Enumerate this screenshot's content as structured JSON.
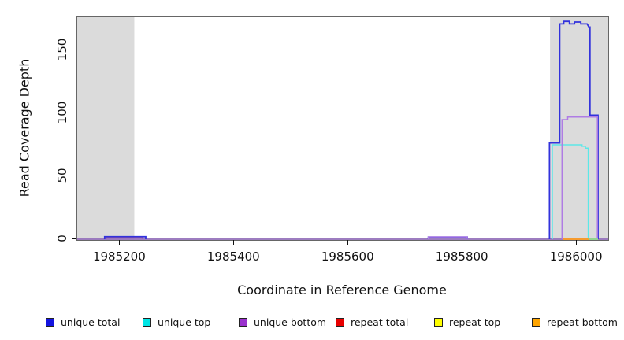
{
  "chart_data": {
    "type": "line",
    "xlabel": "Coordinate in Reference Genome",
    "ylabel": "Read Coverage Depth",
    "xlim": [
      1985125,
      1986055
    ],
    "ylim": [
      0,
      177
    ],
    "xticks": [
      1985200,
      1985400,
      1985600,
      1985800,
      1986000
    ],
    "yticks": [
      0,
      50,
      100,
      150
    ],
    "grid": false,
    "shaded_regions": [
      {
        "from": 1985125,
        "to": 1985225,
        "color": "#DBDBDB"
      },
      {
        "from": 1985953,
        "to": 1986055,
        "color": "#DBDBDB"
      }
    ],
    "baseline": {
      "color": "#7E64E6",
      "points": [
        [
          1985125,
          0
        ],
        [
          1986055,
          0
        ]
      ]
    },
    "series": [
      {
        "name": "unique total",
        "line_color": "#3232DC",
        "segments": [
          [
            [
              1985173,
              0
            ],
            [
              1985173,
              2
            ],
            [
              1985245,
              2
            ],
            [
              1985245,
              0
            ]
          ],
          [
            [
              1985740,
              0
            ],
            [
              1985740,
              1.7
            ],
            [
              1985808,
              1.7
            ],
            [
              1985808,
              0
            ]
          ],
          [
            [
              1985952,
              0
            ],
            [
              1985952,
              76.5
            ],
            [
              1985970,
              76.5
            ],
            [
              1985970,
              171
            ],
            [
              1985977,
              171
            ],
            [
              1985977,
              173
            ],
            [
              1985987,
              173
            ],
            [
              1985987,
              171
            ],
            [
              1985996,
              171
            ],
            [
              1985996,
              172.5
            ],
            [
              1986007,
              172.5
            ],
            [
              1986007,
              171
            ],
            [
              1986018,
              171
            ],
            [
              1986021,
              168.5
            ],
            [
              1986023,
              168.5
            ],
            [
              1986023,
              98.5
            ],
            [
              1986037,
              98.5
            ],
            [
              1986037,
              0
            ]
          ]
        ]
      },
      {
        "name": "unique top",
        "line_color": "#5CE8E8",
        "segments": [
          [
            [
              1985957,
              0
            ],
            [
              1985957,
              75
            ],
            [
              1986009,
              75
            ],
            [
              1986009,
              73.8
            ],
            [
              1986015,
              73.8
            ],
            [
              1986015,
              72.3
            ],
            [
              1986020,
              72.3
            ],
            [
              1986020,
              0
            ]
          ]
        ]
      },
      {
        "name": "unique bottom",
        "line_color": "#AF7CE4",
        "segments": [
          [
            [
              1985740,
              0
            ],
            [
              1985740,
              1.9
            ],
            [
              1985808,
              1.9
            ],
            [
              1985808,
              0
            ]
          ],
          [
            [
              1985974,
              0
            ],
            [
              1985974,
              95
            ],
            [
              1985984,
              95
            ],
            [
              1985984,
              97
            ],
            [
              1986036,
              97
            ],
            [
              1986036,
              0
            ]
          ]
        ]
      },
      {
        "name": "repeat total",
        "line_color": "#E85050",
        "segments": [
          [
            [
              1985176,
              0
            ],
            [
              1985176,
              1
            ],
            [
              1985239,
              1
            ],
            [
              1985239,
              0
            ]
          ]
        ]
      },
      {
        "name": "repeat top",
        "line_color": "#F0F000",
        "segments": [
          [
            [
              1985125,
              0
            ],
            [
              1986055,
              0
            ]
          ]
        ]
      },
      {
        "name": "repeat bottom",
        "line_color": "#FF9C20",
        "segments": [
          [
            [
              1985125,
              0
            ],
            [
              1986055,
              0
            ]
          ]
        ]
      }
    ],
    "overlap_segments": [
      {
        "name": "repeat-bottom-visible",
        "color": "#FF9C20",
        "points": [
          [
            1985975,
            0
          ],
          [
            1986021,
            0
          ]
        ]
      },
      {
        "name": "repeat-top-over-unique-top-visible",
        "color": "#8FDC8F",
        "points": [
          [
            1986021,
            0
          ],
          [
            1986037,
            0
          ]
        ]
      }
    ]
  },
  "legend": {
    "items": [
      {
        "label": "unique total",
        "color": "#1414E0"
      },
      {
        "label": "unique top",
        "color": "#00E6E6"
      },
      {
        "label": "unique bottom",
        "color": "#9A32CD"
      },
      {
        "label": "repeat total",
        "color": "#E80000"
      },
      {
        "label": "repeat top",
        "color": "#FFFF00"
      },
      {
        "label": "repeat bottom",
        "color": "#FFA500"
      }
    ]
  }
}
